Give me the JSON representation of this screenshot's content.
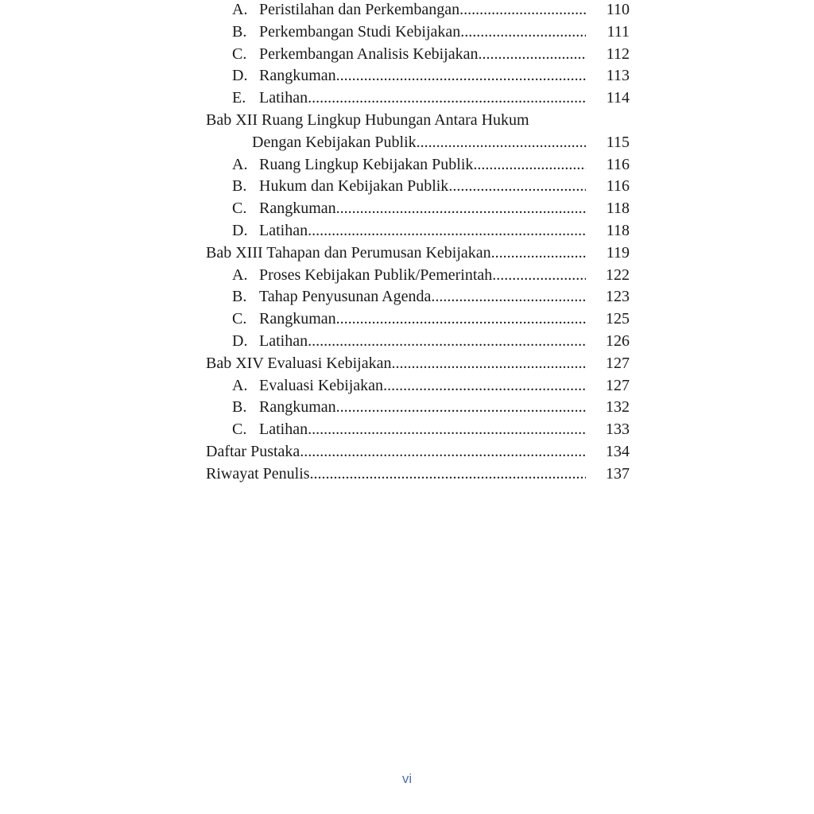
{
  "toc": [
    {
      "level": 1,
      "letter": "A.",
      "title": "Peristilahan dan Perkembangan",
      "page": "110"
    },
    {
      "level": 1,
      "letter": "B.",
      "title": "Perkembangan Studi Kebijakan",
      "page": "111"
    },
    {
      "level": 1,
      "letter": "C.",
      "title": "Perkembangan Analisis Kebijakan",
      "page": "112"
    },
    {
      "level": 1,
      "letter": "D.",
      "title": "Rangkuman",
      "page": "113"
    },
    {
      "level": 1,
      "letter": "E.",
      "title": "Latihan",
      "page": "114"
    },
    {
      "level": 0,
      "letter": "",
      "title": "Bab XII Ruang Lingkup Hubungan Antara Hukum",
      "page": "",
      "nodots": true
    },
    {
      "level": 2,
      "letter": "",
      "title": "Dengan Kebijakan Publik",
      "page": "115"
    },
    {
      "level": 1,
      "letter": "A.",
      "title": "Ruang Lingkup Kebijakan Publik",
      "page": "116"
    },
    {
      "level": 1,
      "letter": "B.",
      "title": "Hukum dan Kebijakan Publik",
      "page": "116"
    },
    {
      "level": 1,
      "letter": "C.",
      "title": "Rangkuman",
      "page": "118"
    },
    {
      "level": 1,
      "letter": "D.",
      "title": "Latihan",
      "page": "118"
    },
    {
      "level": 0,
      "letter": "",
      "title": "Bab XIII Tahapan dan Perumusan Kebijakan",
      "page": "119"
    },
    {
      "level": 1,
      "letter": "A.",
      "title": "Proses Kebijakan Publik/Pemerintah",
      "page": "122"
    },
    {
      "level": 1,
      "letter": "B.",
      "title": "Tahap Penyusunan Agenda",
      "page": "123"
    },
    {
      "level": 1,
      "letter": "C.",
      "title": "Rangkuman",
      "page": "125"
    },
    {
      "level": 1,
      "letter": "D.",
      "title": "Latihan",
      "page": "126"
    },
    {
      "level": 0,
      "letter": "",
      "title": "Bab XIV Evaluasi Kebijakan",
      "page": "127"
    },
    {
      "level": 1,
      "letter": "A.",
      "title": "Evaluasi Kebijakan",
      "page": "127"
    },
    {
      "level": 1,
      "letter": "B.",
      "title": "Rangkuman",
      "page": "132"
    },
    {
      "level": 1,
      "letter": "C.",
      "title": "Latihan",
      "page": "133"
    },
    {
      "level": 0,
      "letter": "",
      "title": "Daftar Pustaka",
      "page": "134"
    },
    {
      "level": 0,
      "letter": "",
      "title": "Riwayat Penulis",
      "page": "137"
    }
  ],
  "folio": "vi",
  "colors": {
    "folio": "#4a6fc4",
    "text": "#1a1a1a"
  }
}
